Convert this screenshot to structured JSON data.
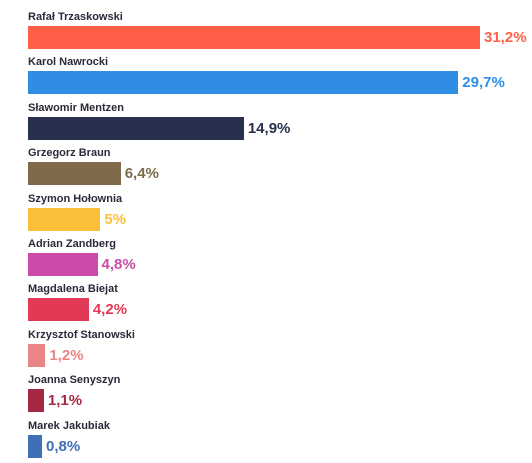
{
  "chart_data": {
    "type": "bar",
    "orientation": "horizontal",
    "title": "",
    "xlabel": "",
    "ylabel": "",
    "xlim": [
      0,
      31.2
    ],
    "grid": false,
    "legend": "none",
    "categories": [
      "Rafał Trzaskowski",
      "Karol Nawrocki",
      "Sławomir Mentzen",
      "Grzegorz Braun",
      "Szymon Hołownia",
      "Adrian Zandberg",
      "Magdalena Biejat",
      "Krzysztof Stanowski",
      "Joanna Senyszyn",
      "Marek Jakubiak"
    ],
    "values": [
      31.2,
      29.7,
      14.9,
      6.4,
      5,
      4.8,
      4.2,
      1.2,
      1.1,
      0.8
    ],
    "data_labels": [
      "31,2%",
      "29,7%",
      "14,9%",
      "6,4%",
      "5%",
      "4,8%",
      "4,2%",
      "1,2%",
      "1,1%",
      "0,8%"
    ],
    "colors": [
      "#ff5f47",
      "#2f8de4",
      "#27314d",
      "#7f6a4c",
      "#fbbf3a",
      "#cc4aa8",
      "#e23a56",
      "#ea8585",
      "#a52843",
      "#3f6fb6"
    ]
  }
}
